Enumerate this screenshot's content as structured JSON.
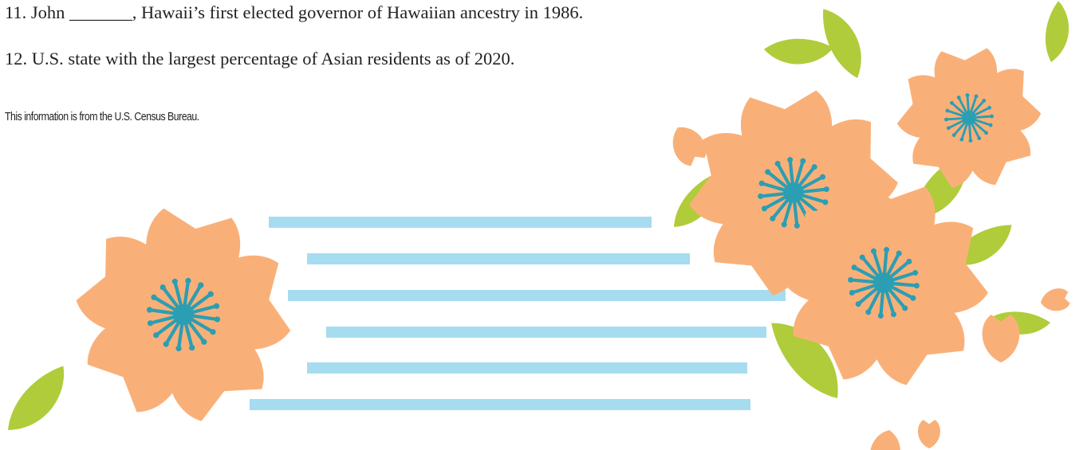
{
  "clues": [
    "11. John _______, Hawaii’s first elected governor of Hawaiian ancestry in 1986.",
    "12. U.S. state with the largest percentage of Asian residents as of 2020."
  ],
  "footer": "This information is from the U.S. Census Bureau."
}
